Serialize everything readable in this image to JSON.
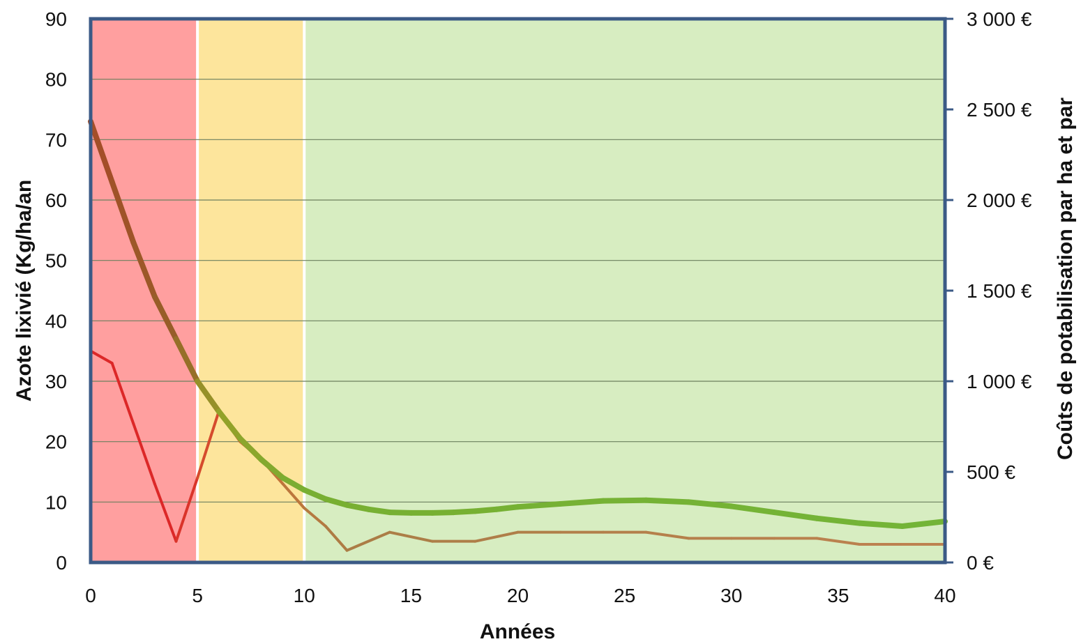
{
  "chart_data": {
    "type": "line",
    "xlabel": "Années",
    "ylabel_left": "Azote lixivié (Kg/ha/an",
    "ylabel_right": "Coûts de potabilisation par ha et par",
    "x_ticks": [
      "0",
      "5",
      "10",
      "15",
      "20",
      "25",
      "30",
      "35",
      "40"
    ],
    "y_left_ticks": [
      "0",
      "10",
      "20",
      "30",
      "40",
      "50",
      "60",
      "70",
      "80",
      "90"
    ],
    "y_right_ticks": [
      "0 €",
      "500 €",
      "1 000 €",
      "1 500 €",
      "2 000 €",
      "2 500 €",
      "3 000 €"
    ],
    "xlim": [
      0,
      40
    ],
    "ylim_left": [
      0,
      90
    ],
    "ylim_right": [
      0,
      3000
    ],
    "grid": true,
    "zones": [
      {
        "x_start": 0,
        "x_end": 5,
        "color": "#ff9f9f"
      },
      {
        "x_start": 5,
        "x_end": 10,
        "color": "#fde59c"
      },
      {
        "x_start": 10,
        "x_end": 40,
        "color": "#d7edc1"
      }
    ],
    "series": [
      {
        "axis": "left",
        "style": "thin",
        "x": [
          0,
          1,
          2,
          3,
          4,
          5,
          6,
          7,
          8,
          9,
          10,
          11,
          12,
          14,
          16,
          18,
          20,
          22,
          24,
          26,
          28,
          30,
          32,
          34,
          36,
          38,
          40
        ],
        "values": [
          35,
          33,
          23,
          13,
          3.5,
          14,
          25,
          20,
          17,
          13,
          9,
          6,
          2,
          5,
          3.5,
          3.5,
          5,
          5,
          5,
          5,
          4,
          4,
          4,
          4,
          3,
          3,
          3
        ]
      },
      {
        "axis": "left",
        "style": "thick",
        "x": [
          0,
          1,
          2,
          3,
          4,
          5,
          6,
          7,
          8,
          9,
          10,
          11,
          12,
          13,
          14,
          15,
          16,
          17,
          18,
          19,
          20,
          22,
          24,
          26,
          28,
          30,
          32,
          34,
          36,
          38,
          40
        ],
        "values": [
          73,
          63,
          53,
          44,
          37,
          30,
          25,
          20.5,
          17,
          14,
          12,
          10.5,
          9.5,
          8.8,
          8.3,
          8.2,
          8.2,
          8.3,
          8.5,
          8.8,
          9.2,
          9.7,
          10.2,
          10.3,
          10,
          9.3,
          8.3,
          7.3,
          6.5,
          6,
          6.8
        ]
      }
    ]
  }
}
